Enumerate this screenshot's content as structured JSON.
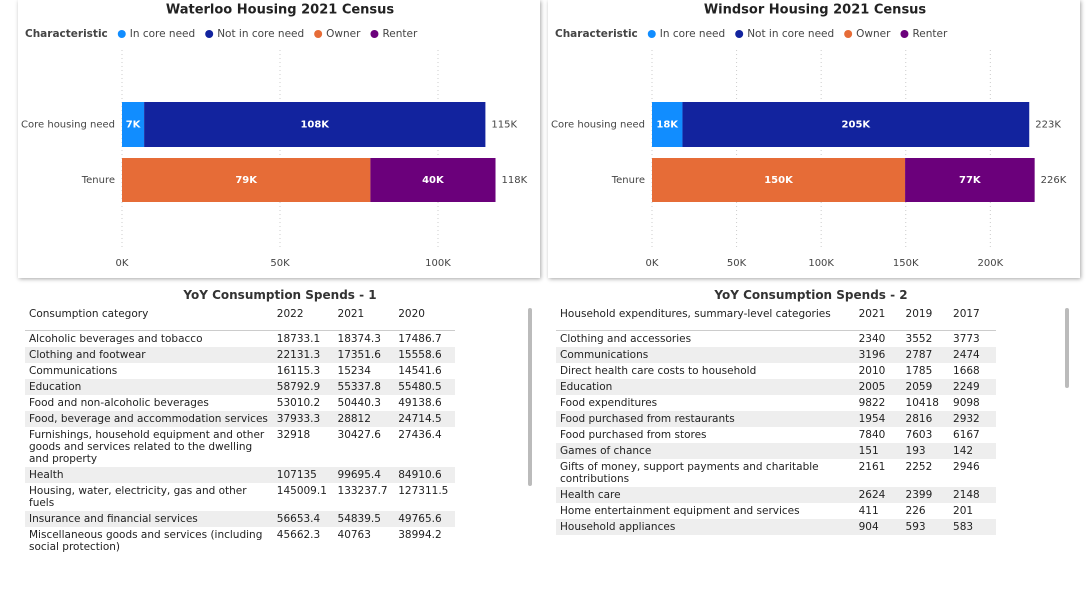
{
  "chart_data": [
    {
      "type": "stacked-bar-horizontal",
      "title": "Waterloo Housing 2021 Census",
      "legend_title": "Characteristic",
      "categories": [
        "Core housing need",
        "Tenure"
      ],
      "series": [
        {
          "name": "In core need",
          "color": "#118dff",
          "values": [
            7000,
            null
          ],
          "value_labels": [
            "7K",
            null
          ]
        },
        {
          "name": "Not in core need",
          "color": "#12239e",
          "values": [
            108000,
            null
          ],
          "value_labels": [
            "108K",
            null
          ]
        },
        {
          "name": "Owner",
          "color": "#e66c37",
          "values": [
            null,
            78600
          ],
          "value_labels": [
            null,
            "79K"
          ]
        },
        {
          "name": "Renter",
          "color": "#6b007b",
          "values": [
            null,
            39600
          ],
          "value_labels": [
            null,
            "40K"
          ]
        }
      ],
      "totals": [
        115000,
        118200
      ],
      "total_labels": [
        "115K",
        "118K"
      ],
      "xlim": [
        0,
        125000
      ],
      "xticks": [
        {
          "value": 0,
          "label": "0K"
        },
        {
          "value": 50000,
          "label": "50K"
        },
        {
          "value": 100000,
          "label": "100K"
        }
      ],
      "grid": true
    },
    {
      "type": "stacked-bar-horizontal",
      "title": "Windsor Housing 2021 Census",
      "legend_title": "Characteristic",
      "categories": [
        "Core housing need",
        "Tenure"
      ],
      "series": [
        {
          "name": "In core need",
          "color": "#118dff",
          "values": [
            18000,
            null
          ],
          "value_labels": [
            "18K",
            null
          ]
        },
        {
          "name": "Not in core need",
          "color": "#12239e",
          "values": [
            205000,
            null
          ],
          "value_labels": [
            "205K",
            null
          ]
        },
        {
          "name": "Owner",
          "color": "#e66c37",
          "values": [
            null,
            149600
          ],
          "value_labels": [
            null,
            "150K"
          ]
        },
        {
          "name": "Renter",
          "color": "#6b007b",
          "values": [
            null,
            76600
          ],
          "value_labels": [
            null,
            "77K"
          ]
        }
      ],
      "totals": [
        223000,
        226200
      ],
      "total_labels": [
        "223K",
        "226K"
      ],
      "xlim": [
        0,
        240000
      ],
      "xticks": [
        {
          "value": 0,
          "label": "0K"
        },
        {
          "value": 50000,
          "label": "50K"
        },
        {
          "value": 100000,
          "label": "100K"
        },
        {
          "value": 150000,
          "label": "150K"
        },
        {
          "value": 200000,
          "label": "200K"
        }
      ],
      "grid": true
    }
  ],
  "tables": [
    {
      "title": "YoY Consumption Spends - 1",
      "columns": [
        "Consumption category",
        "2022",
        "2021",
        "2020"
      ],
      "rows": [
        [
          "Alcoholic beverages and tobacco",
          18733.1,
          18374.3,
          17486.7
        ],
        [
          "Clothing and footwear",
          22131.3,
          17351.6,
          15558.6
        ],
        [
          "Communications",
          16115.3,
          15234,
          14541.6
        ],
        [
          "Education",
          58792.9,
          55337.8,
          55480.5
        ],
        [
          "Food and non-alcoholic beverages",
          53010.2,
          50440.3,
          49138.6
        ],
        [
          "Food, beverage and accommodation services",
          37933.3,
          28812,
          24714.5
        ],
        [
          "Furnishings, household equipment and other goods and services related to the dwelling and property",
          32918,
          30427.6,
          27436.4
        ],
        [
          "Health",
          107135,
          99695.4,
          84910.6
        ],
        [
          "Housing, water, electricity, gas and other fuels",
          145009.1,
          133237.7,
          127311.5
        ],
        [
          "Insurance and financial services",
          56653.4,
          54839.5,
          49765.6
        ],
        [
          "Miscellaneous goods and services (including social protection)",
          45662.3,
          40763,
          38994.2
        ]
      ]
    },
    {
      "title": "YoY Consumption Spends - 2",
      "columns": [
        "Household expenditures, summary-level categories",
        "2021",
        "2019",
        "2017"
      ],
      "rows": [
        [
          "Clothing and accessories",
          2340,
          3552,
          3773
        ],
        [
          "Communications",
          3196,
          2787,
          2474
        ],
        [
          "Direct health care costs to household",
          2010,
          1785,
          1668
        ],
        [
          "Education",
          2005,
          2059,
          2249
        ],
        [
          "Food expenditures",
          9822,
          10418,
          9098
        ],
        [
          "Food purchased from restaurants",
          1954,
          2816,
          2932
        ],
        [
          "Food purchased from stores",
          7840,
          7603,
          6167
        ],
        [
          "Games of chance",
          151,
          193,
          142
        ],
        [
          "Gifts of money, support payments and charitable contributions",
          2161,
          2252,
          2946
        ],
        [
          "Health care",
          2624,
          2399,
          2148
        ],
        [
          "Home entertainment equipment and services",
          411,
          226,
          201
        ],
        [
          "Household appliances",
          904,
          593,
          583
        ]
      ]
    }
  ]
}
